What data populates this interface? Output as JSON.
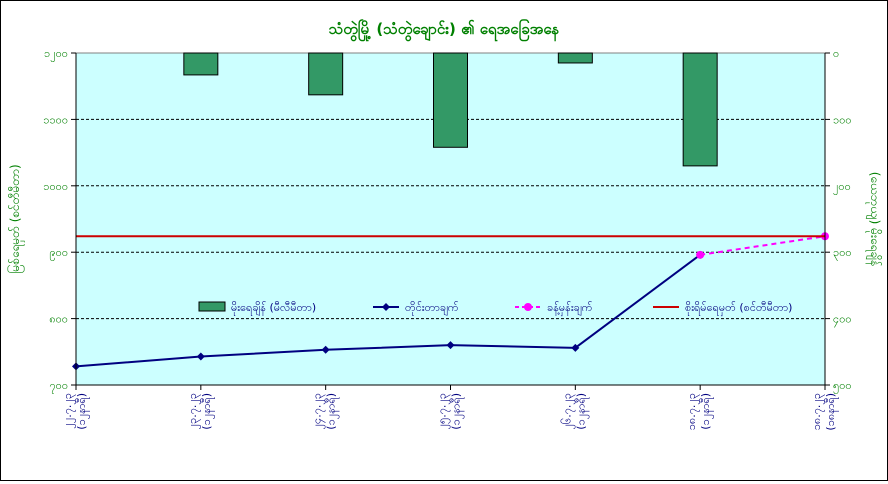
{
  "chart_data": {
    "type": "bar+line",
    "title": "သံတွဲမြို့ (သံတွဲချောင်း) ၏ ရေအခြေအနေ",
    "ylabel_left": "မြစ်ရေမှတ် (စင်တီမီတာ)",
    "ylabel_right": "(ယေဘုယျ) မိုးရေချိန်",
    "categories": [
      [
        "၂၂.၇.၂၃",
        "(၁၂နာရီ)"
      ],
      [
        "၂၃.၇.၂၃",
        "(၁၂နာရီ)"
      ],
      [
        "၂၄.၇.၂၃",
        "(၁၂နာရီ)"
      ],
      [
        "၂၅.၇.၂၃",
        "(၁၂နာရီ)"
      ],
      [
        "၂၆.၇.၂၃",
        "(၁၂နာရီ)"
      ],
      [
        "၁၈.၇.၂၃",
        "(၁၂နာရီ)"
      ],
      [
        "၁၈.၇.၂၃",
        "(၁၈နာရီ)"
      ]
    ],
    "left_axis": {
      "min": 700,
      "max": 1200,
      "ticks": [
        700,
        800,
        900,
        1000,
        1100,
        1200
      ],
      "tick_labels": [
        "၇၀၀",
        "၈၀၀",
        "၉၀၀",
        "၁၀၀၀",
        "၁၁၀၀",
        "၁၂၀၀"
      ]
    },
    "right_axis": {
      "min": 0,
      "max": 500,
      "inverted": true,
      "ticks": [
        0,
        100,
        200,
        300,
        400,
        500
      ],
      "tick_labels": [
        "၀",
        "၁၀၀",
        "၂၀၀",
        "၃၀၀",
        "၄၀၀",
        "၅၀၀"
      ]
    },
    "series": [
      {
        "name": "မိုးရေချိန် (မီလီမီတာ)",
        "kind": "bar",
        "axis": "right",
        "color": "#339966",
        "values": [
          null,
          33,
          63,
          142,
          15,
          170,
          null
        ]
      },
      {
        "name": "တိုင်းတာချက်",
        "kind": "line",
        "axis": "left",
        "color": "#000080",
        "values": [
          728,
          743,
          753,
          760,
          756,
          896,
          null
        ]
      },
      {
        "name": "ခန့်မှန်းချက်",
        "kind": "dashed-line",
        "axis": "left",
        "color": "#ff00ff",
        "values": [
          null,
          null,
          null,
          null,
          null,
          896,
          924
        ]
      },
      {
        "name": "စိုးရိမ်ရေမှတ် (စင်တီမီတာ)",
        "kind": "horizontal-line",
        "axis": "left",
        "color": "#cc0000",
        "value": 924
      }
    ],
    "legend_position": "center",
    "grid": true,
    "plot_background": "#ccffff"
  }
}
